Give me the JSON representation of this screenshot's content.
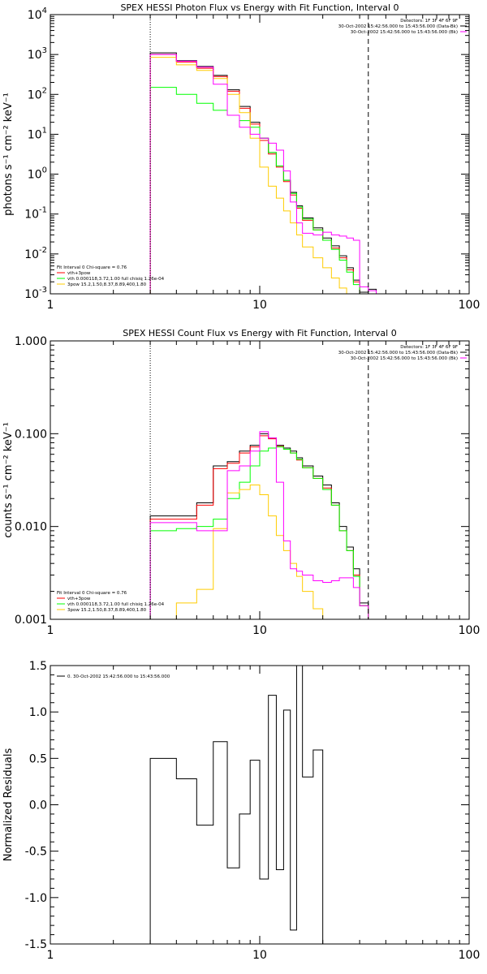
{
  "chart_data": [
    {
      "type": "line",
      "title": "SPEX HESSI Photon Flux vs Energy with Fit Function, Interval 0",
      "ylabel": "photons s⁻¹ cm⁻² keV⁻¹",
      "xlabel": "",
      "xscale": "log",
      "yscale": "log",
      "xlim": [
        1,
        100
      ],
      "ylim": [
        0.001,
        10000
      ],
      "xticks": [
        "1",
        "10",
        "100"
      ],
      "yticks": [
        {
          "v": 0.001,
          "base": "10",
          "exp": "-3"
        },
        {
          "v": 0.01,
          "base": "10",
          "exp": "-2"
        },
        {
          "v": 0.1,
          "base": "10",
          "exp": "-1"
        },
        {
          "v": 1,
          "base": "10",
          "exp": "0"
        },
        {
          "v": 10,
          "base": "10",
          "exp": "1"
        },
        {
          "v": 100,
          "base": "10",
          "exp": "2"
        },
        {
          "v": 1000,
          "base": "10",
          "exp": "3"
        },
        {
          "v": 10000,
          "base": "10",
          "exp": "4"
        }
      ],
      "vlines": [
        {
          "x": 3.0,
          "style": "dotted"
        },
        {
          "x": 33.0,
          "style": "dashed"
        }
      ],
      "legend_top_right": [
        {
          "text": "Detectors: 1F 3F 4F 6F 9F",
          "color": "#000000"
        },
        {
          "text": "30-Oct-2002 15:42:56.000 to 15:43:56.000 (Data-Bk)",
          "color": "#000000"
        },
        {
          "text": "30-Oct-2002 15:42:56.000 to 15:43:56.000 (Bk)",
          "color": "#ff00ff"
        }
      ],
      "legend_bottom_left": {
        "title": "Fit Interval 0   Chi-square = 0.76",
        "items": [
          {
            "text": "vth+3pow",
            "color": "#ff0000"
          },
          {
            "text": "vth 0.000118,3.72,1.00   full chisiq 1.26e-04",
            "color": "#00ff00"
          },
          {
            "text": "3pow 15.2,1.50,8.37,8.89,400,1.80",
            "color": "#ffcc00"
          }
        ]
      },
      "edges": [
        3,
        4,
        5,
        6,
        7,
        8,
        9,
        10,
        11,
        12,
        13,
        14,
        15,
        16,
        18,
        20,
        22,
        24,
        26,
        28,
        30,
        33,
        36
      ],
      "series": [
        {
          "name": "data",
          "color": "#000000",
          "values": [
            1100,
            700,
            500,
            300,
            130,
            50,
            20,
            8,
            3.5,
            1.6,
            0.7,
            0.35,
            0.16,
            0.08,
            0.045,
            0.025,
            0.016,
            0.009,
            0.0045,
            0.0022,
            0.0011,
            0.0013
          ]
        },
        {
          "name": "vth+3pow",
          "color": "#ff0000",
          "values": [
            1000,
            650,
            450,
            280,
            120,
            45,
            18,
            7,
            3.2,
            1.5,
            0.65,
            0.3,
            0.14,
            0.07,
            0.04,
            0.022,
            0.014,
            0.008,
            0.004,
            0.002,
            0.001,
            null
          ]
        },
        {
          "name": "vth",
          "color": "#00ff00",
          "values": [
            150,
            100,
            60,
            40,
            30,
            22,
            15,
            8,
            3.5,
            1.6,
            0.7,
            0.33,
            0.15,
            0.075,
            0.04,
            0.022,
            0.013,
            0.007,
            0.0035,
            0.0017,
            0.0009,
            null
          ]
        },
        {
          "name": "3pow",
          "color": "#ffcc00",
          "values": [
            850,
            550,
            400,
            250,
            100,
            35,
            8,
            1.5,
            0.5,
            0.25,
            0.12,
            0.06,
            0.03,
            0.015,
            0.008,
            0.0045,
            0.0025,
            0.0014,
            0.0008,
            0.0005,
            null,
            null
          ]
        },
        {
          "name": "Bk",
          "color": "#ff00ff",
          "values": [
            1000,
            680,
            480,
            180,
            30,
            15,
            10,
            8,
            6,
            4,
            1.2,
            0.2,
            0.06,
            0.033,
            0.03,
            0.035,
            0.03,
            0.028,
            0.025,
            0.022,
            0.0015,
            0.0012
          ]
        }
      ]
    },
    {
      "type": "line",
      "title": "SPEX HESSI Count Flux vs Energy with Fit Function, Interval 0",
      "ylabel": "counts s⁻¹ cm⁻² keV⁻¹",
      "xlabel": "",
      "xscale": "log",
      "yscale": "log",
      "xlim": [
        1,
        100
      ],
      "ylim": [
        0.001,
        1.0
      ],
      "xticks": [
        "1",
        "10",
        "100"
      ],
      "yticks": [
        {
          "v": 0.001,
          "label": "0.001"
        },
        {
          "v": 0.01,
          "label": "0.010"
        },
        {
          "v": 0.1,
          "label": "0.100"
        },
        {
          "v": 1.0,
          "label": "1.000"
        }
      ],
      "vlines": [
        {
          "x": 3.0,
          "style": "dotted"
        },
        {
          "x": 33.0,
          "style": "dashed"
        }
      ],
      "legend_top_right": [
        {
          "text": "Detectors: 1F 3F 4F 6F 9F",
          "color": "#000000"
        },
        {
          "text": "30-Oct-2002 15:42:56.000 to 15:43:56.000 (Data-Bk)",
          "color": "#000000"
        },
        {
          "text": "30-Oct-2002 15:42:56.000 to 15:43:56.000 (Bk)",
          "color": "#ff00ff"
        }
      ],
      "legend_bottom_left": {
        "title": "Fit Interval 0   Chi-square = 0.76",
        "items": [
          {
            "text": "vth+3pow",
            "color": "#ff0000"
          },
          {
            "text": "vth 0.000118,3.72,1.00   full chisiq 1.26e-04",
            "color": "#00ff00"
          },
          {
            "text": "3pow 15.2,1.50,8.37,8.89,400,1.80",
            "color": "#ffcc00"
          }
        ]
      },
      "edges": [
        3,
        4,
        5,
        6,
        7,
        8,
        9,
        10,
        11,
        12,
        13,
        14,
        15,
        16,
        18,
        20,
        22,
        24,
        26,
        28,
        30,
        33,
        36
      ],
      "series": [
        {
          "name": "data",
          "color": "#000000",
          "values": [
            0.013,
            0.013,
            0.018,
            0.045,
            0.05,
            0.065,
            0.075,
            0.1,
            0.09,
            0.075,
            0.07,
            0.065,
            0.055,
            0.045,
            0.035,
            0.028,
            0.018,
            0.01,
            0.006,
            0.0035,
            0.0015,
            null
          ]
        },
        {
          "name": "vth+3pow",
          "color": "#ff0000",
          "values": [
            0.012,
            0.012,
            0.017,
            0.042,
            0.048,
            0.062,
            0.072,
            0.095,
            0.088,
            0.073,
            0.068,
            0.062,
            0.052,
            0.043,
            0.033,
            0.026,
            0.017,
            0.009,
            0.0055,
            0.003,
            0.0014,
            null
          ]
        },
        {
          "name": "vth",
          "color": "#00ff00",
          "values": [
            0.009,
            0.0095,
            0.01,
            0.012,
            0.02,
            0.03,
            0.045,
            0.065,
            0.07,
            0.072,
            0.068,
            0.062,
            0.053,
            0.043,
            0.033,
            0.025,
            0.017,
            0.009,
            0.0055,
            0.0029,
            0.0014,
            null
          ]
        },
        {
          "name": "3pow",
          "color": "#ffcc00",
          "values": [
            0.001,
            0.0015,
            0.0021,
            0.0095,
            0.023,
            0.025,
            0.028,
            0.022,
            0.013,
            0.008,
            0.0055,
            0.004,
            0.0029,
            0.002,
            0.0013,
            null,
            null,
            null,
            null,
            null,
            null,
            null
          ]
        },
        {
          "name": "Bk",
          "color": "#ff00ff",
          "values": [
            0.011,
            0.011,
            0.009,
            0.009,
            0.04,
            0.045,
            0.065,
            0.105,
            0.09,
            0.03,
            0.007,
            0.0035,
            0.0033,
            0.003,
            0.0026,
            0.0025,
            0.0026,
            0.0028,
            0.0028,
            0.0022,
            0.0014,
            null
          ]
        }
      ]
    },
    {
      "type": "line",
      "title": "",
      "ylabel": "Normalized Residuals",
      "xlabel": "",
      "xscale": "log",
      "yscale": "linear",
      "xlim": [
        1,
        100
      ],
      "ylim": [
        -1.5,
        1.5
      ],
      "xticks": [
        "1",
        "10",
        "100"
      ],
      "yticks": [
        {
          "v": 1.5,
          "label": "1.5"
        },
        {
          "v": 1.0,
          "label": "1.0"
        },
        {
          "v": 0.5,
          "label": "0.5"
        },
        {
          "v": 0.0,
          "label": "0.0"
        },
        {
          "v": -0.5,
          "label": "-0.5"
        },
        {
          "v": -1.0,
          "label": "-1.0"
        },
        {
          "v": -1.5,
          "label": "-1.5"
        }
      ],
      "legend_top_left": [
        {
          "text": "0. 30-Oct-2002 15:42:56.000 to 15:43:56.000",
          "color": "#000000"
        }
      ],
      "edges": [
        3,
        4,
        5,
        6,
        7,
        8,
        9,
        10,
        11,
        12,
        13,
        14,
        15,
        16,
        18,
        20,
        22,
        24,
        26,
        28,
        30,
        33
      ],
      "series": [
        {
          "name": "residuals",
          "color": "#000000",
          "values": [
            0.5,
            0.28,
            -0.22,
            0.68,
            -0.68,
            -0.1,
            0.48,
            -0.8,
            1.18,
            -0.7,
            1.02,
            -1.35,
            1.5,
            0.3,
            0.59,
            null,
            null,
            null,
            null,
            null,
            null
          ]
        }
      ]
    }
  ]
}
